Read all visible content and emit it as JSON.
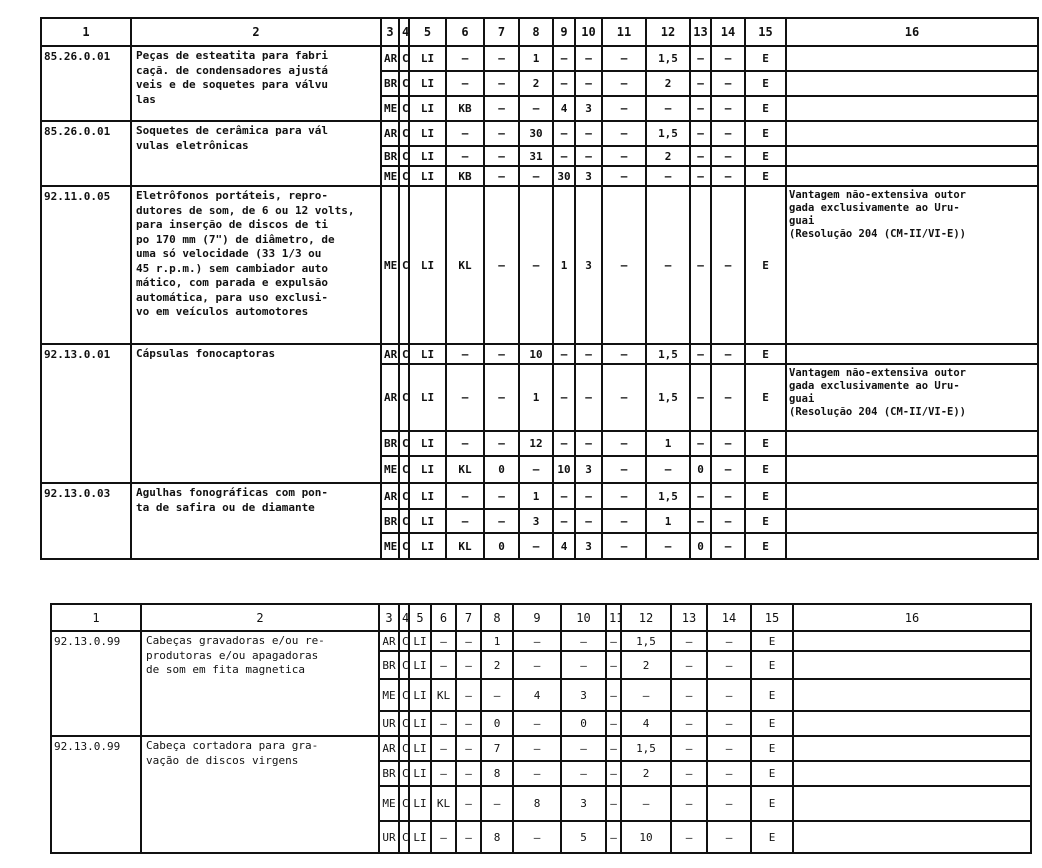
{
  "headers": [
    "1",
    "2",
    "3",
    "4",
    "5",
    "6",
    "7",
    "8",
    "9",
    "10",
    "11",
    "12",
    "13",
    "14",
    "15",
    "16"
  ],
  "tables": [
    {
      "blocks": [
        {
          "code": "85.26.0.01",
          "description": "Peças de esteatita para fabri\ncaçã. de condensadores ajustá\nveis e de soquetes para válvu\nlas",
          "rows": [
            {
              "cells": [
                "AR",
                "C",
                "LI",
                "–",
                "–",
                "1",
                "–",
                "–",
                "–",
                "1,5",
                "–",
                "–",
                "E"
              ],
              "note": ""
            },
            {
              "cells": [
                "BR",
                "C",
                "LI",
                "–",
                "–",
                "2",
                "–",
                "–",
                "–",
                "2",
                "–",
                "–",
                "E"
              ],
              "note": ""
            },
            {
              "cells": [
                "ME",
                "C",
                "LI",
                "KB",
                "–",
                "–",
                "4",
                "3",
                "–",
                "–",
                "–",
                "–",
                "E"
              ],
              "note": ""
            }
          ]
        },
        {
          "code": "85.26.0.01",
          "description": "Soquetes de cerâmica para vál\nvulas eletrônicas",
          "rows": [
            {
              "cells": [
                "AR",
                "C",
                "LI",
                "–",
                "–",
                "30",
                "–",
                "–",
                "–",
                "1,5",
                "–",
                "–",
                "E"
              ],
              "note": ""
            },
            {
              "cells": [
                "BR",
                "C",
                "LI",
                "–",
                "–",
                "31",
                "–",
                "–",
                "–",
                "2",
                "–",
                "–",
                "E"
              ],
              "note": ""
            },
            {
              "cells": [
                "ME",
                "C",
                "LI",
                "KB",
                "–",
                "–",
                "30",
                "3",
                "–",
                "–",
                "–",
                "–",
                "E"
              ],
              "note": ""
            }
          ]
        },
        {
          "code": "92.11.0.05",
          "description": "Eletrôfonos portáteis, repro-\ndutores de som, de 6 ou 12 volts,\npara inserção de discos de ti\npo 170 mm (7\") de diâmetro, de\numa só velocidade (33 1/3 ou\n45 r.p.m.) sem cambiador auto\nmático, com parada e expulsão\nautomática, para uso exclusi-\nvo em veículos automotores",
          "rows": [
            {
              "cells": [
                "ME",
                "C",
                "LI",
                "KL",
                "–",
                "–",
                "1",
                "3",
                "–",
                "–",
                "–",
                "–",
                "E"
              ],
              "note": "Vantagem não-extensiva outor\ngada exclusivamente ao Uru-\nguai\n(Resolução 204 (CM-II/VI-E))"
            }
          ]
        },
        {
          "code": "92.13.0.01",
          "description": "Cápsulas fonocaptoras",
          "rows": [
            {
              "cells": [
                "AR",
                "C",
                "LI",
                "–",
                "–",
                "10",
                "–",
                "–",
                "–",
                "1,5",
                "–",
                "–",
                "E"
              ],
              "note": ""
            },
            {
              "cells": [
                "AR",
                "C",
                "LI",
                "–",
                "–",
                "1",
                "–",
                "–",
                "–",
                "1,5",
                "–",
                "–",
                "E"
              ],
              "note": "Vantagem não-extensiva outor\ngada exclusivamente ao Uru-\nguai\n(Resolução 204 (CM-II/VI-E))"
            },
            {
              "cells": [
                "BR",
                "C",
                "LI",
                "–",
                "–",
                "12",
                "–",
                "–",
                "–",
                "1",
                "–",
                "–",
                "E"
              ],
              "note": ""
            },
            {
              "cells": [
                "ME",
                "C",
                "LI",
                "KL",
                "0",
                "–",
                "10",
                "3",
                "–",
                "–",
                "0",
                "–",
                "E"
              ],
              "note": ""
            }
          ]
        },
        {
          "code": "92.13.0.03",
          "description": "Agulhas fonográficas com pon-\nta de safira ou de diamante",
          "rows": [
            {
              "cells": [
                "AR",
                "C",
                "LI",
                "–",
                "–",
                "1",
                "–",
                "–",
                "–",
                "1,5",
                "–",
                "–",
                "E"
              ],
              "note": ""
            },
            {
              "cells": [
                "BR",
                "C",
                "LI",
                "–",
                "–",
                "3",
                "–",
                "–",
                "–",
                "1",
                "–",
                "–",
                "E"
              ],
              "note": ""
            },
            {
              "cells": [
                "ME",
                "C",
                "LI",
                "KL",
                "0",
                "–",
                "4",
                "3",
                "–",
                "–",
                "0",
                "–",
                "E"
              ],
              "note": ""
            }
          ]
        }
      ]
    },
    {
      "blocks": [
        {
          "code": "92.13.0.99",
          "description": "Cabeças gravadoras e/ou re-\nprodutoras e/ou apagadoras\nde som em fita magnetica",
          "rows": [
            {
              "cells": [
                "AR",
                "C",
                "LI",
                "–",
                "–",
                "1",
                "–",
                "–",
                "–",
                "1,5",
                "–",
                "–",
                "E"
              ],
              "note": ""
            },
            {
              "cells": [
                "BR",
                "C",
                "LI",
                "–",
                "–",
                "2",
                "–",
                "–",
                "–",
                "2",
                "–",
                "–",
                "E"
              ],
              "note": ""
            },
            {
              "cells": [
                "ME",
                "C",
                "LI",
                "KL",
                "–",
                "–",
                "4",
                "3",
                "–",
                "–",
                "–",
                "–",
                "E"
              ],
              "note": ""
            },
            {
              "cells": [
                "UR",
                "C",
                "LI",
                "–",
                "–",
                "0",
                "–",
                "0",
                "–",
                "4",
                "–",
                "–",
                "E"
              ],
              "note": ""
            }
          ]
        },
        {
          "code": "92.13.0.99",
          "description": "Cabeça cortadora para gra-\nvação de discos virgens",
          "rows": [
            {
              "cells": [
                "AR",
                "C",
                "LI",
                "–",
                "–",
                "7",
                "–",
                "–",
                "–",
                "1,5",
                "–",
                "–",
                "E"
              ],
              "note": ""
            },
            {
              "cells": [
                "BR",
                "C",
                "LI",
                "–",
                "–",
                "8",
                "–",
                "–",
                "–",
                "2",
                "–",
                "–",
                "E"
              ],
              "note": ""
            },
            {
              "cells": [
                "ME",
                "C",
                "LI",
                "KL",
                "–",
                "–",
                "8",
                "3",
                "–",
                "–",
                "–",
                "–",
                "E"
              ],
              "note": ""
            },
            {
              "cells": [
                "UR",
                "C",
                "LI",
                "–",
                "–",
                "8",
                "–",
                "5",
                "–",
                "10",
                "–",
                "–",
                "E"
              ],
              "note": ""
            }
          ]
        }
      ]
    }
  ]
}
